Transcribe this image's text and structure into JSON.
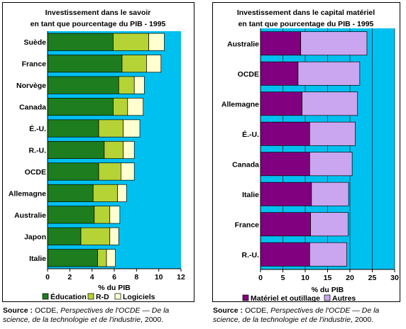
{
  "chart_data": [
    {
      "type": "bar",
      "stacked": true,
      "orientation": "horizontal",
      "title": "Investissement dans le savoir en tant que pourcentage du PIB - 1995",
      "title_lines": [
        "Investissement dans le savoir",
        "en tant que pourcentage du PIB - 1995"
      ],
      "xlabel": "% du PIB",
      "xlim": [
        0,
        12
      ],
      "xticks": [
        0,
        2,
        4,
        6,
        8,
        10,
        12
      ],
      "categories": [
        "Suède",
        "France",
        "Norvège",
        "Canada",
        "É.-U.",
        "R.-U.",
        "OCDE",
        "Allemagne",
        "Australie",
        "Japon",
        "Italie"
      ],
      "series": [
        {
          "name": "Éducation",
          "color": "#1e7d1e",
          "values": [
            5.9,
            6.7,
            6.4,
            5.9,
            4.6,
            5.1,
            4.6,
            4.1,
            4.2,
            3.0,
            4.5
          ]
        },
        {
          "name": "R-D",
          "color": "#b5d334",
          "values": [
            3.2,
            2.2,
            1.4,
            1.3,
            2.2,
            1.7,
            2.0,
            2.2,
            1.4,
            2.6,
            0.8
          ]
        },
        {
          "name": "Logiciels",
          "color": "#ffffd0",
          "values": [
            1.4,
            1.3,
            0.9,
            1.4,
            1.5,
            1.0,
            1.2,
            0.8,
            0.9,
            0.8,
            0.8
          ]
        }
      ],
      "legend": "bottom",
      "grid": false,
      "plot_background": "#00c0f0"
    },
    {
      "type": "bar",
      "stacked": true,
      "orientation": "horizontal",
      "title": "Investissement dans le capital matériel en tant que pourcentage du PIB - 1995",
      "title_lines": [
        "Investissement dans le capital matériel",
        "en tant que pourcentage du PIB - 1995"
      ],
      "xlabel": "% du PIB",
      "xlim": [
        0,
        30
      ],
      "xticks": [
        0,
        5,
        10,
        15,
        20,
        25,
        30
      ],
      "categories": [
        "Australie",
        "OCDE",
        "Allemagne",
        "É.-U.",
        "Canada",
        "Italie",
        "France",
        "R.-U."
      ],
      "series": [
        {
          "name": "Matériel et outillage",
          "color": "#800080",
          "values": [
            9.0,
            8.4,
            9.3,
            11.0,
            11.0,
            11.4,
            11.2,
            11.0
          ]
        },
        {
          "name": "Autres",
          "color": "#c9a6ef",
          "values": [
            14.8,
            13.8,
            12.4,
            10.2,
            9.5,
            8.3,
            8.4,
            8.3
          ]
        }
      ],
      "legend": "bottom",
      "grid": true,
      "plot_background": "#00c0f0"
    }
  ],
  "sources": [
    {
      "label": "Source :",
      "publisher": "OCDE,",
      "work": "Perspectives de l'OCDE — De la science, de la technologie et de l'industrie",
      "year": ", 2000."
    },
    {
      "label": "Source :",
      "publisher": "OCDE,",
      "work": "Perspectives de l'OCDE — De la science, de la technologie et de l'industrie",
      "year": ", 2000."
    }
  ]
}
